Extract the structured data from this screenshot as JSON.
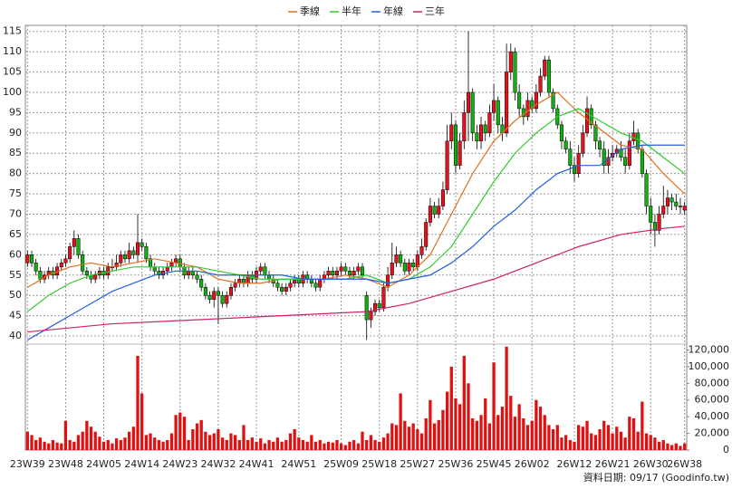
{
  "chart_data": {
    "type": "candlestick",
    "legend_position": "top",
    "grid": true,
    "up_color": "#e8101c",
    "down_color": "#10b010",
    "note": "資料日期: 09/17 (Goodinfo.tw)",
    "categories": [
      "23W39",
      null,
      null,
      null,
      null,
      null,
      null,
      null,
      null,
      "23W48",
      null,
      null,
      null,
      null,
      null,
      null,
      null,
      null,
      "24W05",
      null,
      null,
      null,
      null,
      null,
      null,
      null,
      null,
      "24W14",
      null,
      null,
      null,
      null,
      null,
      null,
      null,
      null,
      "24W23",
      null,
      null,
      null,
      null,
      null,
      null,
      null,
      null,
      "24W32",
      null,
      null,
      null,
      null,
      null,
      null,
      null,
      null,
      "24W41",
      null,
      null,
      null,
      null,
      null,
      null,
      null,
      null,
      null,
      "24W51",
      null,
      null,
      null,
      null,
      null,
      null,
      null,
      null,
      null,
      "25W09",
      null,
      null,
      null,
      null,
      null,
      null,
      null,
      null,
      "25W18",
      null,
      null,
      null,
      null,
      null,
      null,
      null,
      null,
      "25W27",
      null,
      null,
      null,
      null,
      null,
      null,
      null,
      null,
      "25W36",
      null,
      null,
      null,
      null,
      null,
      null,
      null,
      null,
      "25W45",
      null,
      null,
      null,
      null,
      null,
      null,
      null,
      null,
      "26W02",
      null,
      null,
      null,
      null,
      null,
      null,
      null,
      null,
      null,
      "26W12",
      null,
      null,
      null,
      null,
      null,
      null,
      null,
      null,
      "26W21",
      null,
      null,
      null,
      null,
      null,
      null,
      null,
      null,
      "26W30",
      null,
      null,
      null,
      null,
      null,
      null,
      null,
      "26W38"
    ],
    "open": [
      58,
      60,
      58,
      56,
      54,
      55,
      56,
      55,
      57,
      58,
      59,
      62,
      64,
      60,
      56,
      55,
      54,
      55,
      56,
      55,
      57,
      57,
      58,
      60,
      59,
      61,
      60,
      63,
      62,
      59,
      57,
      56,
      55,
      56,
      57,
      58,
      59,
      57,
      55,
      56,
      55,
      54,
      52,
      50,
      49,
      51,
      50,
      48,
      50,
      52,
      53,
      54,
      53,
      55,
      54,
      56,
      57,
      55,
      54,
      53,
      52,
      51,
      52,
      53,
      54,
      53,
      55,
      54,
      53,
      52,
      54,
      55,
      56,
      55,
      56,
      57,
      56,
      55,
      56,
      57,
      50,
      44,
      46,
      48,
      47,
      52,
      55,
      58,
      60,
      58,
      56,
      58,
      57,
      60,
      62,
      68,
      72,
      70,
      72,
      76,
      88,
      92,
      82,
      88,
      95,
      100,
      90,
      88,
      92,
      90,
      95,
      98,
      92,
      90,
      105,
      110,
      100,
      96,
      94,
      98,
      96,
      100,
      104,
      108,
      100,
      96,
      92,
      88,
      86,
      82,
      80,
      85,
      90,
      96,
      92,
      88,
      86,
      82,
      84,
      85,
      86,
      84,
      82,
      88,
      90,
      86,
      80,
      72,
      68,
      66,
      70,
      72,
      74,
      73,
      72,
      71
    ],
    "high": [
      61,
      61,
      59,
      57,
      56,
      57,
      57,
      58,
      59,
      60,
      63,
      66,
      65,
      61,
      57,
      56,
      56,
      57,
      57,
      58,
      59,
      60,
      61,
      61,
      63,
      62,
      70,
      64,
      63,
      60,
      58,
      57,
      57,
      58,
      59,
      60,
      60,
      58,
      57,
      57,
      56,
      55,
      53,
      51,
      52,
      52,
      51,
      51,
      53,
      54,
      55,
      55,
      56,
      56,
      57,
      58,
      58,
      56,
      55,
      54,
      53,
      53,
      54,
      55,
      55,
      56,
      56,
      55,
      54,
      55,
      56,
      57,
      57,
      57,
      58,
      58,
      57,
      57,
      58,
      58,
      51,
      47,
      49,
      49,
      53,
      57,
      63,
      62,
      61,
      59,
      59,
      59,
      61,
      64,
      69,
      74,
      73,
      74,
      78,
      92,
      95,
      93,
      90,
      98,
      115,
      101,
      92,
      94,
      93,
      97,
      102,
      99,
      94,
      112,
      112,
      111,
      102,
      97,
      100,
      99,
      102,
      106,
      109,
      109,
      101,
      97,
      93,
      89,
      88,
      84,
      87,
      92,
      99,
      97,
      93,
      89,
      88,
      86,
      87,
      87,
      88,
      86,
      90,
      93,
      91,
      87,
      81,
      74,
      70,
      72,
      77,
      76,
      75,
      75,
      74,
      73
    ],
    "low": [
      57,
      57,
      55,
      53,
      53,
      54,
      54,
      54,
      56,
      57,
      58,
      60,
      59,
      55,
      54,
      53,
      53,
      54,
      54,
      54,
      56,
      56,
      57,
      58,
      58,
      59,
      58,
      61,
      58,
      56,
      55,
      54,
      54,
      55,
      56,
      57,
      56,
      54,
      54,
      54,
      53,
      51,
      49,
      48,
      47,
      43,
      47,
      47,
      49,
      51,
      52,
      52,
      52,
      53,
      53,
      55,
      54,
      53,
      52,
      51,
      50,
      50,
      51,
      52,
      52,
      52,
      53,
      52,
      51,
      51,
      53,
      54,
      54,
      54,
      55,
      55,
      54,
      54,
      55,
      54,
      39,
      42,
      45,
      46,
      46,
      51,
      54,
      57,
      57,
      55,
      55,
      56,
      56,
      59,
      61,
      67,
      69,
      69,
      71,
      75,
      86,
      80,
      81,
      86,
      88,
      88,
      86,
      86,
      88,
      89,
      93,
      90,
      88,
      89,
      103,
      98,
      94,
      92,
      93,
      95,
      95,
      99,
      103,
      99,
      95,
      91,
      86,
      85,
      80,
      78,
      79,
      84,
      89,
      91,
      86,
      84,
      80,
      80,
      83,
      84,
      83,
      80,
      81,
      87,
      85,
      79,
      70,
      65,
      62,
      65,
      69,
      70,
      71,
      71,
      70,
      70
    ],
    "close": [
      60,
      58,
      56,
      54,
      55,
      56,
      55,
      57,
      58,
      59,
      62,
      64,
      60,
      56,
      55,
      54,
      55,
      56,
      55,
      57,
      57,
      58,
      60,
      59,
      61,
      60,
      63,
      62,
      59,
      57,
      56,
      55,
      56,
      57,
      58,
      59,
      57,
      55,
      56,
      55,
      54,
      52,
      50,
      49,
      51,
      50,
      48,
      50,
      52,
      53,
      54,
      53,
      55,
      54,
      56,
      57,
      55,
      54,
      53,
      52,
      51,
      52,
      53,
      54,
      53,
      55,
      54,
      53,
      52,
      54,
      55,
      56,
      55,
      56,
      57,
      56,
      55,
      56,
      57,
      55,
      44,
      46,
      48,
      47,
      52,
      55,
      58,
      60,
      58,
      56,
      58,
      57,
      60,
      62,
      68,
      72,
      70,
      72,
      76,
      88,
      92,
      82,
      88,
      95,
      100,
      90,
      88,
      92,
      90,
      95,
      98,
      92,
      90,
      105,
      110,
      100,
      96,
      94,
      98,
      96,
      100,
      104,
      108,
      100,
      96,
      92,
      88,
      86,
      82,
      80,
      85,
      90,
      96,
      92,
      88,
      86,
      82,
      84,
      85,
      86,
      84,
      82,
      88,
      90,
      86,
      80,
      72,
      68,
      66,
      70,
      72,
      74,
      73,
      72,
      72,
      72
    ],
    "ylim": [
      38,
      116.5
    ],
    "yticks": [
      40,
      45,
      50,
      55,
      60,
      65,
      70,
      75,
      80,
      85,
      90,
      95,
      100,
      105,
      110,
      115
    ],
    "series": [
      {
        "name": "季線",
        "color": "#e07020",
        "x": [
          0,
          5,
          10,
          15,
          20,
          25,
          30,
          35,
          40,
          45,
          50,
          55,
          60,
          65,
          70,
          75,
          80,
          85,
          90,
          95,
          100,
          105,
          110,
          115,
          120,
          125,
          130,
          135,
          140,
          145,
          150,
          155
        ],
        "values": [
          52,
          55,
          57,
          58,
          57,
          58,
          59,
          58,
          57,
          54,
          53,
          53,
          54,
          54,
          54,
          55,
          54,
          52,
          55,
          60,
          70,
          80,
          88,
          93,
          97,
          100,
          95,
          91,
          87,
          86,
          80,
          75
        ]
      },
      {
        "name": "半年",
        "color": "#30cc30",
        "x": [
          0,
          5,
          10,
          15,
          20,
          25,
          30,
          35,
          40,
          45,
          50,
          55,
          60,
          65,
          70,
          75,
          80,
          85,
          90,
          95,
          100,
          105,
          110,
          115,
          120,
          125,
          130,
          135,
          140,
          145,
          150,
          155
        ],
        "values": [
          46,
          50,
          53,
          55,
          56,
          57,
          57,
          57,
          57,
          56,
          55,
          54,
          54,
          54,
          54,
          54,
          55,
          53,
          54,
          57,
          62,
          70,
          78,
          85,
          90,
          94,
          96,
          93,
          90,
          88,
          84,
          80
        ]
      },
      {
        "name": "年線",
        "color": "#2060e0",
        "x": [
          0,
          5,
          10,
          15,
          20,
          25,
          30,
          35,
          40,
          45,
          50,
          55,
          60,
          65,
          70,
          75,
          80,
          85,
          90,
          95,
          100,
          105,
          110,
          115,
          120,
          125,
          130,
          135,
          140,
          145,
          150,
          155
        ],
        "values": [
          39,
          42,
          45,
          48,
          51,
          53,
          55,
          56,
          56,
          55,
          55,
          55,
          55,
          54,
          54,
          54,
          54,
          53,
          54,
          55,
          58,
          62,
          67,
          71,
          76,
          80,
          82,
          82,
          86,
          87,
          87,
          87
        ]
      },
      {
        "name": "三年",
        "color": "#d0206a",
        "x": [
          0,
          10,
          20,
          30,
          40,
          50,
          60,
          70,
          80,
          90,
          100,
          110,
          120,
          130,
          140,
          150,
          155
        ],
        "values": [
          41,
          42,
          43,
          43.5,
          44,
          44.5,
          45,
          45.5,
          46,
          48,
          51,
          54,
          58,
          62,
          65,
          66.5,
          67
        ]
      }
    ],
    "volume": {
      "color": "#e01010",
      "values": [
        22000,
        18000,
        12000,
        15000,
        10000,
        8000,
        12000,
        9000,
        8000,
        35000,
        12000,
        10000,
        18000,
        22000,
        35000,
        28000,
        22000,
        16000,
        10000,
        12000,
        8000,
        14000,
        12000,
        15000,
        22000,
        28000,
        113000,
        68000,
        18000,
        20000,
        15000,
        12000,
        10000,
        12000,
        20000,
        42000,
        45000,
        40000,
        12000,
        25000,
        32000,
        36000,
        22000,
        18000,
        20000,
        25000,
        15000,
        12000,
        20000,
        18000,
        12000,
        30000,
        12000,
        15000,
        10000,
        14000,
        8000,
        12000,
        10000,
        15000,
        10000,
        12000,
        20000,
        25000,
        15000,
        12000,
        10000,
        18000,
        10000,
        12000,
        8000,
        10000,
        9000,
        12000,
        8000,
        6000,
        10000,
        12000,
        8000,
        22000,
        12000,
        18000,
        12000,
        10000,
        15000,
        20000,
        32000,
        30000,
        68000,
        35000,
        28000,
        32000,
        25000,
        20000,
        38000,
        60000,
        32000,
        36000,
        48000,
        70000,
        100000,
        62000,
        55000,
        113000,
        80000,
        38000,
        35000,
        42000,
        62000,
        32000,
        105000,
        42000,
        52000,
        124000,
        65000,
        40000,
        55000,
        38000,
        30000,
        35000,
        60000,
        52000,
        42000,
        30000,
        25000,
        30000,
        15000,
        18000,
        12000,
        10000,
        30000,
        28000,
        35000,
        20000,
        18000,
        25000,
        35000,
        30000,
        20000,
        28000,
        22000,
        15000,
        40000,
        38000,
        22000,
        58000,
        20000,
        18000,
        15000,
        10000,
        12000,
        8000,
        6000,
        8000,
        5000,
        8000
      ],
      "ylim": [
        0,
        127000
      ],
      "yticks": [
        0,
        {
          "value": 20000,
          "label": "20,000"
        },
        {
          "value": 40000,
          "label": "40,000"
        },
        {
          "value": 60000,
          "label": "60,000"
        },
        {
          "value": 80000,
          "label": "80,000"
        },
        {
          "value": 100000,
          "label": "100,000"
        },
        {
          "value": 120000,
          "label": "120,000"
        }
      ]
    }
  }
}
